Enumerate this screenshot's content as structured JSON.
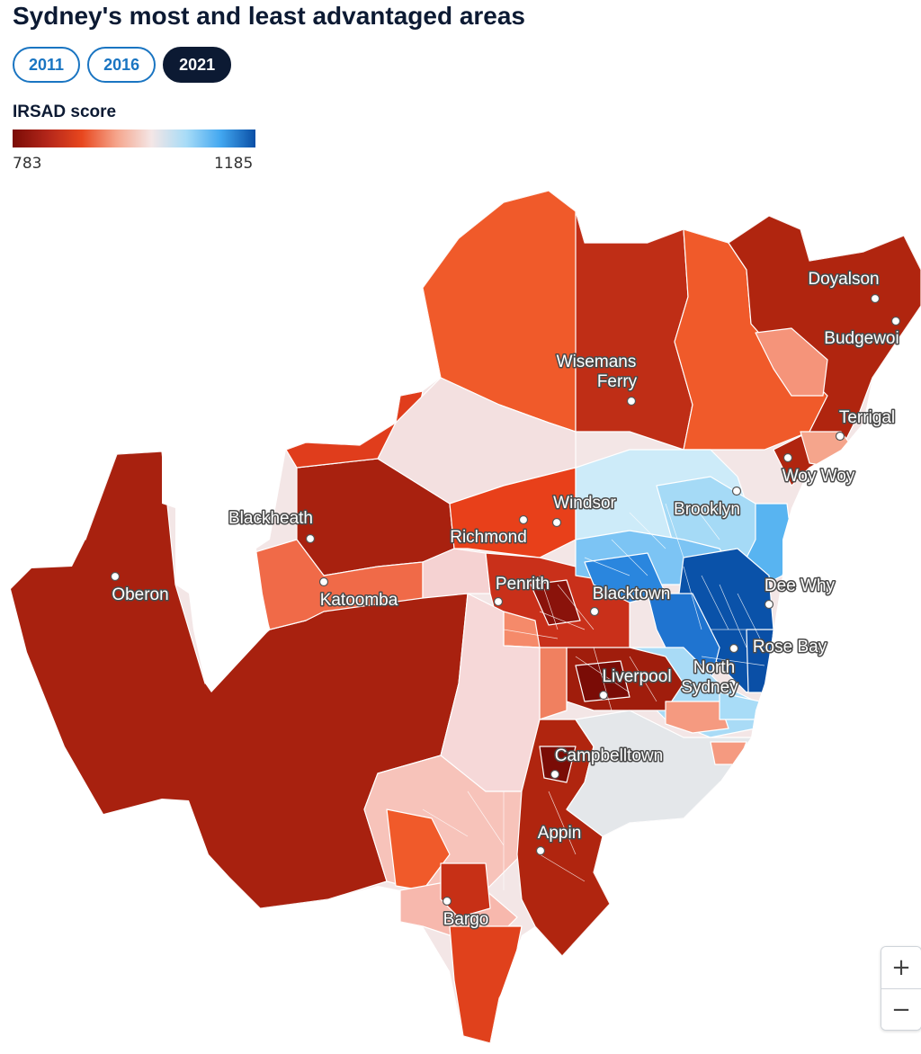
{
  "title": "Sydney's most and least advantaged areas",
  "year_tabs": [
    {
      "label": "2011",
      "active": false
    },
    {
      "label": "2016",
      "active": false
    },
    {
      "label": "2021",
      "active": true
    }
  ],
  "legend": {
    "title": "IRSAD score",
    "min": "783",
    "max": "1185",
    "colors": [
      "#7a0c06",
      "#b3261a",
      "#e8471e",
      "#f5a58c",
      "#f4e6e6",
      "#a8dcf7",
      "#42a7f0",
      "#0a4fa6"
    ]
  },
  "places": [
    {
      "name": "Doyalson"
    },
    {
      "name": "Budgewoi"
    },
    {
      "name": "Wisemans Ferry"
    },
    {
      "name": "Terrigal"
    },
    {
      "name": "Woy Woy"
    },
    {
      "name": "Brooklyn"
    },
    {
      "name": "Windsor"
    },
    {
      "name": "Blackheath"
    },
    {
      "name": "Richmond"
    },
    {
      "name": "Penrith"
    },
    {
      "name": "Blacktown"
    },
    {
      "name": "Dee Why"
    },
    {
      "name": "Oberon"
    },
    {
      "name": "Katoomba"
    },
    {
      "name": "Rose Bay"
    },
    {
      "name": "North Sydney"
    },
    {
      "name": "Liverpool"
    },
    {
      "name": "Campbelltown"
    },
    {
      "name": "Appin"
    },
    {
      "name": "Bargo"
    }
  ],
  "zoom": {
    "in_label": "+",
    "out_label": "−"
  }
}
